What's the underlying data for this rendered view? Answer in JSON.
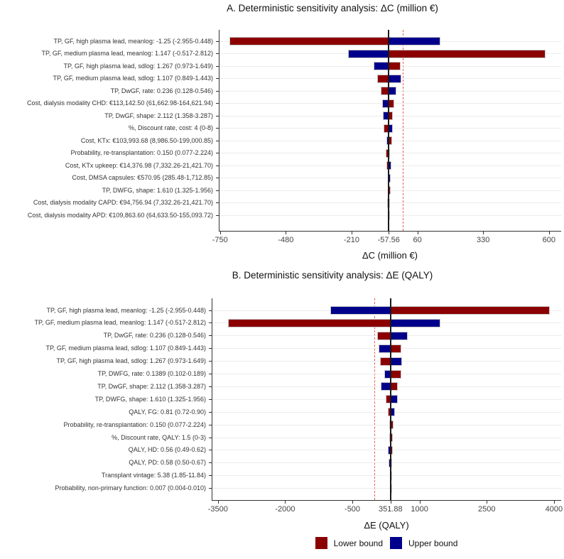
{
  "page": {
    "background": "#ffffff"
  },
  "legend": {
    "items": [
      {
        "label": "Lower bound",
        "color": "#8B0000"
      },
      {
        "label": "Upper bound",
        "color": "#00008B"
      }
    ]
  },
  "chart_data": [
    {
      "type": "bar",
      "subtype": "tornado",
      "title": "A. Deterministic sensitivity analysis: ΔC (million €)",
      "xlabel": "ΔC (million €)",
      "base_value": -57.56,
      "reference_line": 0,
      "axis_domain": [
        -755,
        650
      ],
      "grid": "horizontal-light",
      "colors": {
        "lower": "#8B0000",
        "upper": "#00008B"
      },
      "ticks": [
        {
          "value": -750,
          "label": "-750"
        },
        {
          "value": -480,
          "label": "-480"
        },
        {
          "value": -210,
          "label": "-210"
        },
        {
          "value": -57.56,
          "label": "-57.56"
        },
        {
          "value": 60,
          "label": "60"
        },
        {
          "value": 330,
          "label": "330"
        },
        {
          "value": 600,
          "label": "600"
        }
      ],
      "rows": [
        {
          "label": "TP, GF, high plasma lead, meanlog: -1.25 (-2.955-0.448)",
          "lower": -710,
          "upper": 155
        },
        {
          "label": "TP, GF, medium plasma lead, meanlog: 1.147 (-0.517-2.812)",
          "lower": 585,
          "upper": -225
        },
        {
          "label": "TP, GF, high plasma lead, sdlog: 1.267 (0.973-1.649)",
          "lower": -10,
          "upper": -120
        },
        {
          "label": "TP, GF, medium plasma lead, sdlog: 1.107 (0.849-1.443)",
          "lower": -105,
          "upper": -5
        },
        {
          "label": "TP, DwGF, rate: 0.236 (0.128-0.546)",
          "lower": -90,
          "upper": -26
        },
        {
          "label": "Cost, dialysis modality CHD: €113,142.50 (61,662.98-164,621.94)",
          "lower": -35,
          "upper": -85
        },
        {
          "label": "TP, DwGF, shape: 2.112 (1.358-3.287)",
          "lower": -40,
          "upper": -81
        },
        {
          "label": "%, Discount rate, cost: 4 (0-8)",
          "lower": -78,
          "upper": -42
        },
        {
          "label": "Cost, KTx: €103,993.68 (8,986.50-199,000.85)",
          "lower": -45,
          "upper": -68
        },
        {
          "label": "Probability, re-transplantation: 0.150 (0.077-2.224)",
          "lower": -70,
          "upper": -52
        },
        {
          "label": "Cost, KTx upkeep: €14,376.98 (7,332.26-21,421.70)",
          "lower": -68,
          "upper": -48
        },
        {
          "label": "Cost, DMSA capsules: €570.95 (285.48-1,712.85)",
          "lower": -62,
          "upper": -50
        },
        {
          "label": "TP, DWFG, shape: 1.610 (1.325-1.956)",
          "lower": -50,
          "upper": -62
        },
        {
          "label": "Cost, dialysis modality CAPD: €94,756.94 (7,332.26-21,421.70)",
          "lower": -64,
          "upper": -53
        },
        {
          "label": "Cost, dialysis modality APD: €109,863.60 (64,633.50-155,093.72)",
          "lower": -61,
          "upper": -54
        }
      ]
    },
    {
      "type": "bar",
      "subtype": "tornado",
      "title": "B. Deterministic sensitivity analysis: ΔE (QALY)",
      "xlabel": "ΔE (QALY)",
      "base_value": 351.88,
      "reference_line": 0,
      "axis_domain": [
        -3640,
        4160
      ],
      "grid": "horizontal-light",
      "colors": {
        "lower": "#8B0000",
        "upper": "#00008B"
      },
      "ticks": [
        {
          "value": -3500,
          "label": "-3500"
        },
        {
          "value": -2000,
          "label": "-2000"
        },
        {
          "value": -500,
          "label": "-500"
        },
        {
          "value": 351.88,
          "label": "351.88"
        },
        {
          "value": 1000,
          "label": "1000"
        },
        {
          "value": 2500,
          "label": "2500"
        },
        {
          "value": 4000,
          "label": "4000"
        }
      ],
      "rows": [
        {
          "label": "TP, GF, high plasma lead, meanlog: -1.25 (-2.955-0.448)",
          "lower": 3900,
          "upper": -1000
        },
        {
          "label": "TP, GF, medium plasma lead, meanlog: 1.147 (-0.517-2.812)",
          "lower": -3270,
          "upper": 1470
        },
        {
          "label": "TP, DwGF, rate: 0.236 (0.128-0.546)",
          "lower": 60,
          "upper": 730
        },
        {
          "label": "TP, GF, medium plasma lead, sdlog: 1.107 (0.849-1.443)",
          "lower": 600,
          "upper": 85
        },
        {
          "label": "TP, GF, high plasma lead, sdlog: 1.267 (0.973-1.649)",
          "lower": 120,
          "upper": 615
        },
        {
          "label": "TP, DWFG, rate: 0.1389 (0.102-0.189)",
          "lower": 590,
          "upper": 205
        },
        {
          "label": "TP, DwGF, shape: 2.112 (1.358-3.287)",
          "lower": 520,
          "upper": 140
        },
        {
          "label": "TP, DWFG, shape: 1.610 (1.325-1.956)",
          "lower": 245,
          "upper": 510
        },
        {
          "label": "QALY, FG: 0.81 (0.72-0.90)",
          "lower": 290,
          "upper": 445
        },
        {
          "label": "Probability, re-transplantation: 0.150 (0.077-2.224)",
          "lower": 425,
          "upper": 320
        },
        {
          "label": "%, Discount rate, QALY: 1.5 (0-3)",
          "lower": 410,
          "upper": 320
        },
        {
          "label": "QALY, HD: 0.56 (0.49-0.62)",
          "lower": 405,
          "upper": 290
        },
        {
          "label": "QALY, PD: 0.58 (0.50-0.67)",
          "lower": 390,
          "upper": 315
        },
        {
          "label": "Transplant vintage: 5.38 (1.85-11.84)",
          "lower": 372,
          "upper": 335
        },
        {
          "label": "Probability, non-primary function: 0.007 (0.004-0.010)",
          "lower": 358,
          "upper": 346
        }
      ]
    }
  ]
}
